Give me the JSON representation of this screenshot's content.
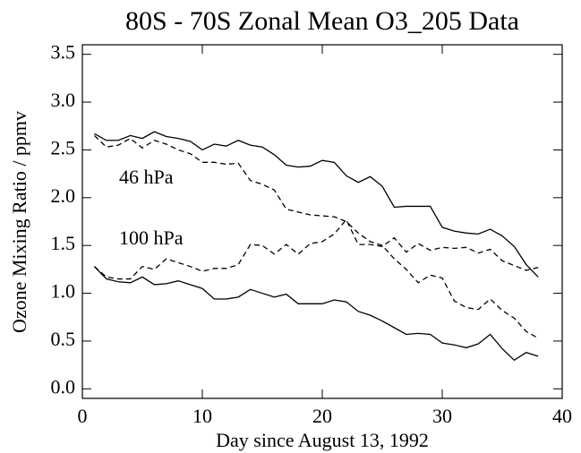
{
  "chart_data": {
    "type": "line",
    "title": "80S - 70S Zonal Mean O3_205 Data",
    "xlabel": "Day since August 13, 1992",
    "ylabel": "Ozone Mixing Ratio / ppmv",
    "annotations": [
      "46 hPa",
      "100 hPa"
    ],
    "xlim": [
      0,
      40
    ],
    "xticks": [
      0,
      10,
      20,
      30,
      40
    ],
    "ylim": [
      -0.1,
      3.6
    ],
    "yticks": [
      {
        "value": 0,
        "label": "0.0"
      },
      {
        "value": 0.5,
        "label": "0.5"
      },
      {
        "value": 1,
        "label": "1.0"
      },
      {
        "value": 1.5,
        "label": "1.5"
      },
      {
        "value": 2,
        "label": "2.0"
      },
      {
        "value": 2.5,
        "label": "2.5"
      },
      {
        "value": 3,
        "label": "3.0"
      },
      {
        "value": 3.5,
        "label": "3.5"
      }
    ],
    "grid": false,
    "x": [
      1,
      2,
      3,
      4,
      5,
      6,
      7,
      8,
      9,
      10,
      11,
      12,
      13,
      14,
      15,
      16,
      17,
      18,
      19,
      20,
      21,
      22,
      23,
      24,
      25,
      26,
      27,
      28,
      29,
      30,
      31,
      32,
      33,
      34,
      35,
      36,
      37,
      38
    ],
    "series": [
      {
        "color": "#000000",
        "dash": false,
        "values": [
          2.67,
          2.6,
          2.6,
          2.65,
          2.62,
          2.69,
          2.64,
          2.62,
          2.59,
          2.5,
          2.56,
          2.54,
          2.6,
          2.55,
          2.53,
          2.45,
          2.34,
          2.32,
          2.33,
          2.39,
          2.37,
          2.23,
          2.16,
          2.22,
          2.12,
          1.9,
          1.91,
          1.91,
          1.91,
          1.69,
          1.65,
          1.63,
          1.62,
          1.67,
          1.6,
          1.49,
          1.3,
          1.17
        ]
      },
      {
        "color": "#000000",
        "dash": true,
        "values": [
          2.65,
          2.53,
          2.55,
          2.62,
          2.52,
          2.6,
          2.56,
          2.5,
          2.46,
          2.37,
          2.37,
          2.35,
          2.36,
          2.18,
          2.14,
          2.08,
          1.88,
          1.85,
          1.82,
          1.81,
          1.8,
          1.75,
          1.63,
          1.54,
          1.5,
          1.36,
          1.25,
          1.11,
          1.19,
          1.16,
          0.92,
          0.85,
          0.83,
          0.94,
          0.82,
          0.74,
          0.6,
          0.53
        ]
      },
      {
        "color": "#000000",
        "dash": true,
        "values": [
          1.28,
          1.17,
          1.15,
          1.15,
          1.28,
          1.25,
          1.36,
          1.32,
          1.28,
          1.23,
          1.26,
          1.26,
          1.3,
          1.51,
          1.5,
          1.41,
          1.51,
          1.41,
          1.52,
          1.54,
          1.62,
          1.77,
          1.51,
          1.51,
          1.49,
          1.58,
          1.43,
          1.52,
          1.45,
          1.48,
          1.47,
          1.48,
          1.42,
          1.46,
          1.34,
          1.29,
          1.24,
          1.27
        ]
      },
      {
        "color": "#000000",
        "dash": false,
        "values": [
          1.28,
          1.15,
          1.12,
          1.11,
          1.17,
          1.09,
          1.1,
          1.13,
          1.09,
          1.05,
          0.94,
          0.94,
          0.96,
          1.04,
          1.0,
          0.96,
          0.99,
          0.89,
          0.89,
          0.89,
          0.93,
          0.91,
          0.81,
          0.77,
          0.71,
          0.64,
          0.57,
          0.58,
          0.57,
          0.48,
          0.46,
          0.43,
          0.47,
          0.57,
          0.42,
          0.3,
          0.38,
          0.34
        ]
      }
    ]
  }
}
